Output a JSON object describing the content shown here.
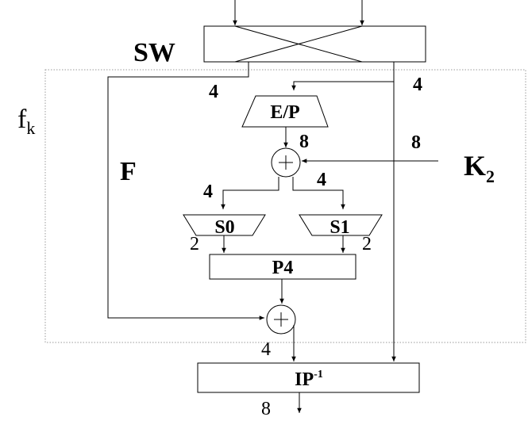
{
  "blocks": {
    "sw_label": "SW",
    "ep_label": "E/P",
    "s0_label": "S0",
    "s1_label": "S1",
    "p4_label": "P4",
    "ip_inverse_base": "IP",
    "ip_inverse_sup": "-1"
  },
  "labels": {
    "fk_base": "f",
    "fk_sub": "k",
    "f_function": "F",
    "key_base": "K",
    "key_sub": "2"
  },
  "bit_widths": {
    "left_branch": "4",
    "right_branch": "4",
    "ep_output": "8",
    "key_input": "8",
    "s0_input": "4",
    "s1_input": "4",
    "s0_output": "2",
    "s1_output": "2",
    "xor_output": "4",
    "final_output": "8"
  }
}
